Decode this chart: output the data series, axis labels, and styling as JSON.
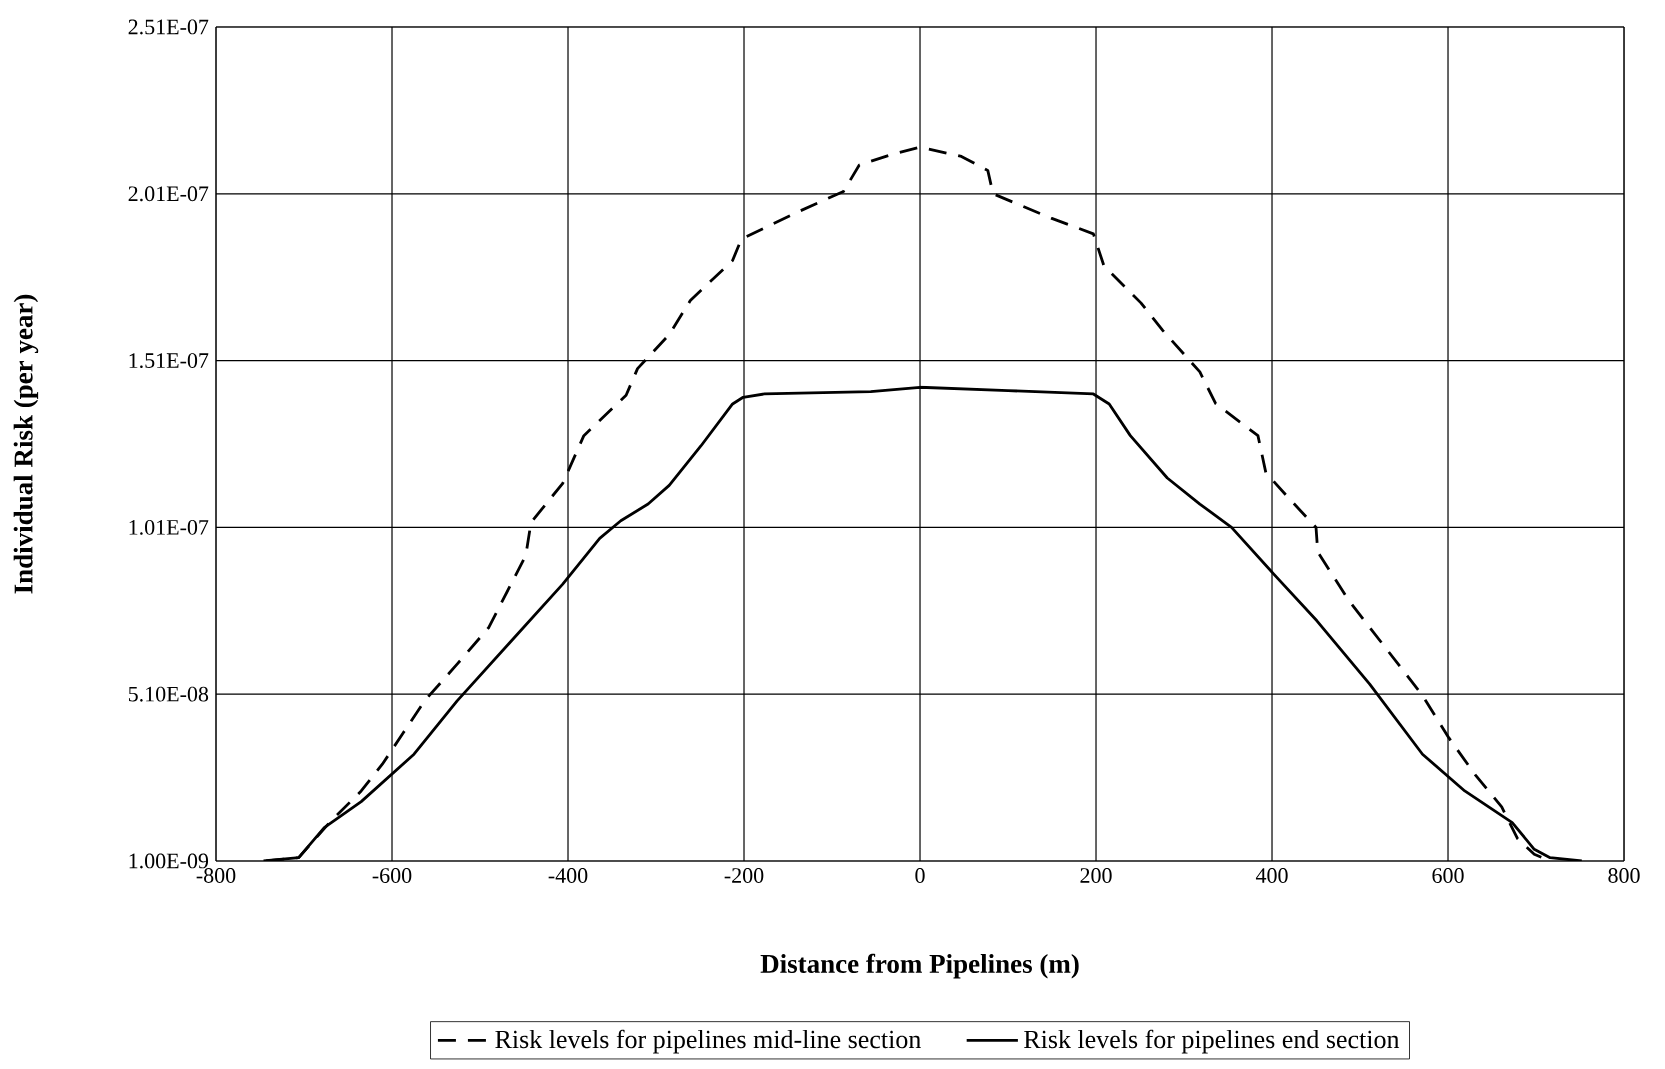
{
  "chart_data": {
    "type": "line",
    "xlabel": "Distance from Pipelines (m)",
    "ylabel": "Individual Risk (per year)",
    "xlim": [
      -800,
      800
    ],
    "xticks": [
      -800,
      -600,
      -400,
      -200,
      0,
      200,
      400,
      600,
      800
    ],
    "ylim": [
      1e-09,
      2.51e-07
    ],
    "yticks": [
      {
        "value": 1e-09,
        "label": "1.00E-09"
      },
      {
        "value": 5.1e-08,
        "label": "5.10E-08"
      },
      {
        "value": 1.01e-07,
        "label": "1.01E-07"
      },
      {
        "value": 1.51e-07,
        "label": "1.51E-07"
      },
      {
        "value": 2.01e-07,
        "label": "2.01E-07"
      },
      {
        "value": 2.51e-07,
        "label": "2.51E-07"
      }
    ],
    "grid": true,
    "legend": "bottom",
    "marker": "none",
    "series": [
      {
        "name": "Risk levels for pipelines mid-line section",
        "color": "#000000",
        "line_style": "dashed",
        "x": [
          -743,
          -706,
          -671,
          -635,
          -611,
          -587,
          -563,
          -526,
          -490,
          -448,
          -442,
          -406,
          -382,
          -334,
          -321,
          -285,
          -261,
          -213,
          -203,
          -141,
          -87,
          -69,
          -32,
          0,
          47,
          77,
          83,
          149,
          197,
          209,
          251,
          276,
          318,
          336,
          384,
          393,
          420,
          450,
          452,
          487,
          529,
          571,
          601,
          631,
          661,
          679,
          698,
          716
        ],
        "values": [
          1e-09,
          2e-09,
          1.25e-08,
          2.2e-08,
          3e-08,
          3.95e-08,
          4.9e-08,
          6e-08,
          7.1e-08,
          9.26e-08,
          1.025e-07,
          1.142e-07,
          1.285e-07,
          1.406e-07,
          1.486e-07,
          1.588e-07,
          1.69e-07,
          1.81e-07,
          1.874e-07,
          1.953e-07,
          2.017e-07,
          2.096e-07,
          2.128e-07,
          2.15e-07,
          2.122e-07,
          2.08e-07,
          2.01e-07,
          1.937e-07,
          1.89e-07,
          1.794e-07,
          1.683e-07,
          1.6e-07,
          1.476e-07,
          1.381e-07,
          1.285e-07,
          1.174e-07,
          1.095e-07,
          1.01e-07,
          9.36e-08,
          7.92e-08,
          6.49e-08,
          5.06e-08,
          3.79e-08,
          2.68e-08,
          1.72e-08,
          7.7e-09,
          3e-09,
          1e-09
        ]
      },
      {
        "name": "Risk levels for pipelines end section",
        "color": "#000000",
        "line_style": "solid",
        "x": [
          -746,
          -706,
          -677,
          -635,
          -575,
          -526,
          -466,
          -406,
          -364,
          -340,
          -309,
          -285,
          -249,
          -213,
          -201,
          -177,
          -56,
          0,
          100,
          197,
          215,
          239,
          281,
          318,
          354,
          402,
          451,
          511,
          571,
          619,
          673,
          698,
          716,
          752
        ],
        "values": [
          1e-09,
          2e-09,
          1.1e-08,
          1.88e-08,
          3.3e-08,
          4.9e-08,
          6.65e-08,
          8.4e-08,
          9.77e-08,
          1.03e-07,
          1.08e-07,
          1.136e-07,
          1.254e-07,
          1.38e-07,
          1.4e-07,
          1.41e-07,
          1.417e-07,
          1.43e-07,
          1.42e-07,
          1.41e-07,
          1.38e-07,
          1.285e-07,
          1.158e-07,
          1.08e-07,
          1.01e-07,
          8.7e-08,
          7.3e-08,
          5.4e-08,
          3.3e-08,
          2.2e-08,
          1.25e-08,
          4.5e-09,
          2e-09,
          1e-09
        ]
      }
    ]
  }
}
